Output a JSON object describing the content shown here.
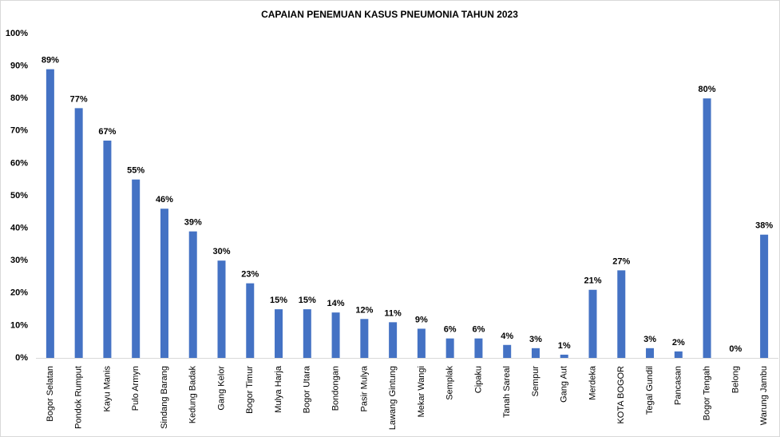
{
  "chart_data": {
    "type": "bar",
    "title": "CAPAIAN PENEMUAN KASUS PNEUMONIA TAHUN 2023",
    "categories": [
      "Bogor Selatan",
      "Pondok Rumput",
      "Kayu Manis",
      "Pulo Armyn",
      "Sindang Barang",
      "Kedung Badak",
      "Gang Kelor",
      "Bogor Timur",
      "Mulya Harja",
      "Bogor Utara",
      "Bondongan",
      "Pasir Mulya",
      "Lawang Gintung",
      "Mekar Wangi",
      "Semplak",
      "Cipaku",
      "Tanah Sareal",
      "Sempur",
      "Gang Aut",
      "Merdeka",
      "KOTA BOGOR",
      "Tegal Gundil",
      "Pancasan",
      "Bogor Tengah",
      "Belong",
      "Warung Jambu"
    ],
    "values": [
      89,
      77,
      67,
      55,
      46,
      39,
      30,
      23,
      15,
      15,
      14,
      12,
      11,
      9,
      6,
      6,
      4,
      3,
      1,
      21,
      27,
      3,
      2,
      80,
      0,
      38
    ],
    "value_labels": [
      "89%",
      "77%",
      "67%",
      "55%",
      "46%",
      "39%",
      "30%",
      "23%",
      "15%",
      "15%",
      "14%",
      "12%",
      "11%",
      "9%",
      "6%",
      "6%",
      "4%",
      "3%",
      "1%",
      "21%",
      "27%",
      "3%",
      "2%",
      "80%",
      "0%",
      "38%"
    ],
    "color": "#4472c4",
    "ylim": [
      0,
      100
    ],
    "yticks": [
      {
        "value": 0,
        "label": "0%"
      },
      {
        "value": 10,
        "label": "10%"
      },
      {
        "value": 20,
        "label": "20%"
      },
      {
        "value": 30,
        "label": "30%"
      },
      {
        "value": 40,
        "label": "40%"
      },
      {
        "value": 50,
        "label": "50%"
      },
      {
        "value": 60,
        "label": "60%"
      },
      {
        "value": 70,
        "label": "70%"
      },
      {
        "value": 80,
        "label": "80%"
      },
      {
        "value": 90,
        "label": "90%"
      },
      {
        "value": 100,
        "label": "100%"
      }
    ],
    "grid": false
  }
}
